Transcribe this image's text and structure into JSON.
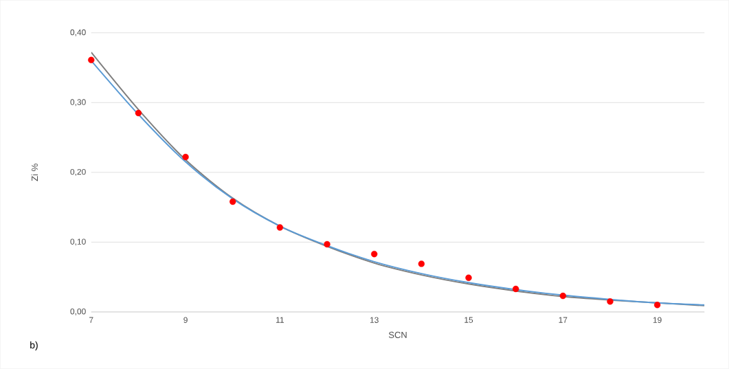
{
  "chart_data": {
    "type": "scatter",
    "xlabel": "SCN",
    "ylabel": "Zi %",
    "annotations": [
      "b)"
    ],
    "xlim": [
      7,
      20
    ],
    "xticks": [
      7,
      9,
      11,
      13,
      15,
      17,
      19
    ],
    "ylim": [
      0,
      0.4
    ],
    "yticks": [
      {
        "value": 0,
        "label": "0,00"
      },
      {
        "value": 0.1,
        "label": "0,10"
      },
      {
        "value": 0.2,
        "label": "0,20"
      },
      {
        "value": 0.3,
        "label": "0,30"
      },
      {
        "value": 0.4,
        "label": "0,40"
      }
    ],
    "grid": "y",
    "series": [
      {
        "type": "line",
        "color": "#7f7f7f",
        "marker": "none",
        "line_style": "solid",
        "x": [
          7,
          8,
          9,
          10,
          11,
          12,
          13,
          14,
          15,
          16,
          17,
          18,
          19,
          20
        ],
        "values": [
          0.372,
          0.29,
          0.218,
          0.163,
          0.123,
          0.094,
          0.07,
          0.053,
          0.04,
          0.03,
          0.022,
          0.017,
          0.013,
          0.009
        ]
      },
      {
        "type": "line",
        "color": "#5b9bd5",
        "marker": "none",
        "line_style": "solid",
        "x": [
          7,
          8,
          9,
          10,
          11,
          12,
          13,
          14,
          15,
          16,
          17,
          18,
          19,
          20
        ],
        "values": [
          0.36,
          0.283,
          0.215,
          0.162,
          0.123,
          0.095,
          0.072,
          0.055,
          0.042,
          0.032,
          0.024,
          0.018,
          0.013,
          0.01
        ]
      },
      {
        "color": "#ff0000",
        "marker": "circle",
        "x": [
          7,
          8,
          9,
          10,
          11,
          12,
          13,
          14,
          15,
          16,
          17,
          18,
          19
        ],
        "values": [
          0.361,
          0.285,
          0.222,
          0.158,
          0.121,
          0.097,
          0.083,
          0.069,
          0.049,
          0.033,
          0.023,
          0.015,
          0.01
        ]
      }
    ]
  }
}
